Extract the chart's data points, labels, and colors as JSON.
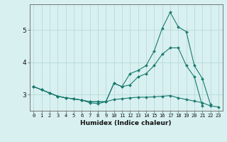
{
  "x": [
    0,
    1,
    2,
    3,
    4,
    5,
    6,
    7,
    8,
    9,
    10,
    11,
    12,
    13,
    14,
    15,
    16,
    17,
    18,
    19,
    20,
    21,
    22,
    23
  ],
  "line1": [
    3.25,
    3.15,
    3.05,
    2.95,
    2.9,
    2.87,
    2.83,
    2.78,
    2.78,
    2.78,
    3.35,
    3.25,
    3.3,
    3.55,
    3.65,
    3.9,
    4.25,
    4.45,
    4.45,
    3.9,
    3.55,
    2.65,
    null,
    null
  ],
  "line2": [
    3.25,
    3.15,
    3.05,
    2.95,
    2.9,
    2.87,
    2.83,
    2.78,
    2.78,
    2.78,
    3.35,
    3.25,
    3.65,
    3.75,
    3.9,
    4.35,
    5.05,
    5.55,
    5.1,
    4.95,
    3.9,
    3.5,
    2.7,
    null
  ],
  "line3": [
    3.25,
    3.15,
    3.05,
    2.95,
    2.9,
    2.87,
    2.83,
    2.75,
    2.72,
    2.78,
    2.85,
    2.87,
    2.9,
    2.92,
    2.92,
    2.93,
    2.95,
    2.97,
    2.9,
    2.85,
    2.8,
    2.75,
    2.65,
    2.62
  ],
  "color": "#1a7a6e",
  "bg_color": "#d8f0f0",
  "grid_color": "#b8dada",
  "xlabel": "Humidex (Indice chaleur)",
  "ylim": [
    2.5,
    5.8
  ],
  "xlim": [
    -0.5,
    23.5
  ],
  "yticks": [
    3,
    4,
    5
  ],
  "xticks": [
    0,
    1,
    2,
    3,
    4,
    5,
    6,
    7,
    8,
    9,
    10,
    11,
    12,
    13,
    14,
    15,
    16,
    17,
    18,
    19,
    20,
    21,
    22,
    23
  ],
  "marker": "D",
  "markersize": 2.0,
  "linewidth": 0.8
}
